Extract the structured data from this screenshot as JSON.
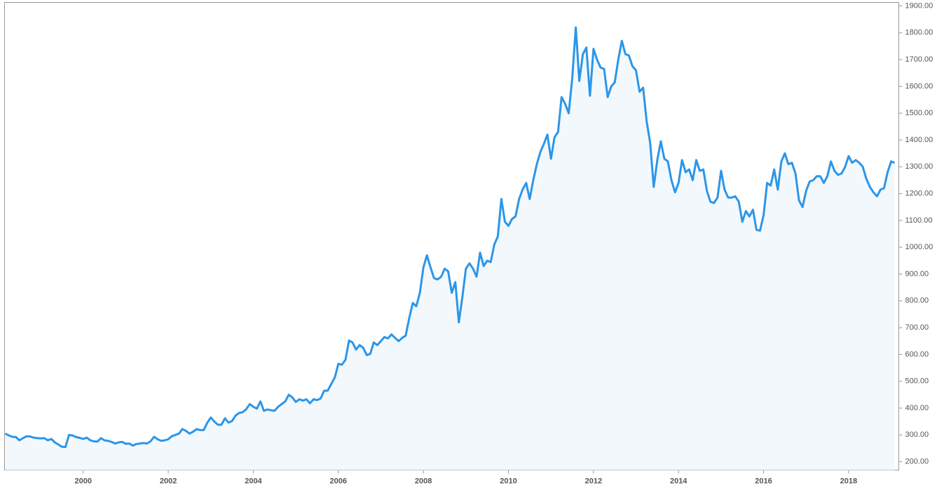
{
  "chart_data": {
    "type": "area",
    "color": "#2b96e9",
    "fill": "#f3f8fd",
    "xlim": [
      1998.15,
      2019.18
    ],
    "ylim": [
      169,
      1913
    ],
    "xticks": [
      2000,
      2002,
      2004,
      2006,
      2008,
      2010,
      2012,
      2014,
      2016,
      2018
    ],
    "yticks": [
      {
        "value": 200,
        "label": "200.00"
      },
      {
        "value": 300,
        "label": "300.00"
      },
      {
        "value": 400,
        "label": "400.00"
      },
      {
        "value": 500,
        "label": "500.00"
      },
      {
        "value": 600,
        "label": "600.00"
      },
      {
        "value": 700,
        "label": "700.00"
      },
      {
        "value": 800,
        "label": "800.00"
      },
      {
        "value": 900,
        "label": "900.00"
      },
      {
        "value": 1000,
        "label": "1000.00"
      },
      {
        "value": 1100,
        "label": "1100.00"
      },
      {
        "value": 1200,
        "label": "1200.00"
      },
      {
        "value": 1300,
        "label": "1300.00"
      },
      {
        "value": 1400,
        "label": "1400.00"
      },
      {
        "value": 1500,
        "label": "1500.00"
      },
      {
        "value": 1600,
        "label": "1600.00"
      },
      {
        "value": 1700,
        "label": "1700.00"
      },
      {
        "value": 1800,
        "label": "1800.00"
      },
      {
        "value": 1900,
        "label": "1900.00"
      }
    ],
    "x": [
      1998.167,
      1998.25,
      1998.333,
      1998.417,
      1998.5,
      1998.583,
      1998.667,
      1998.75,
      1998.833,
      1998.917,
      1999.0,
      1999.083,
      1999.167,
      1999.25,
      1999.333,
      1999.417,
      1999.5,
      1999.583,
      1999.667,
      1999.75,
      1999.833,
      1999.917,
      2000.0,
      2000.083,
      2000.167,
      2000.25,
      2000.333,
      2000.417,
      2000.5,
      2000.583,
      2000.667,
      2000.75,
      2000.833,
      2000.917,
      2001.0,
      2001.083,
      2001.167,
      2001.25,
      2001.333,
      2001.417,
      2001.5,
      2001.583,
      2001.667,
      2001.75,
      2001.833,
      2001.917,
      2002.0,
      2002.083,
      2002.167,
      2002.25,
      2002.333,
      2002.417,
      2002.5,
      2002.583,
      2002.667,
      2002.75,
      2002.833,
      2002.917,
      2003.0,
      2003.083,
      2003.167,
      2003.25,
      2003.333,
      2003.417,
      2003.5,
      2003.583,
      2003.667,
      2003.75,
      2003.833,
      2003.917,
      2004.0,
      2004.083,
      2004.167,
      2004.25,
      2004.333,
      2004.417,
      2004.5,
      2004.583,
      2004.667,
      2004.75,
      2004.833,
      2004.917,
      2005.0,
      2005.083,
      2005.167,
      2005.25,
      2005.333,
      2005.417,
      2005.5,
      2005.583,
      2005.667,
      2005.75,
      2005.833,
      2005.917,
      2006.0,
      2006.083,
      2006.167,
      2006.25,
      2006.333,
      2006.417,
      2006.5,
      2006.583,
      2006.667,
      2006.75,
      2006.833,
      2006.917,
      2007.0,
      2007.083,
      2007.167,
      2007.25,
      2007.333,
      2007.417,
      2007.5,
      2007.583,
      2007.667,
      2007.75,
      2007.833,
      2007.917,
      2008.0,
      2008.083,
      2008.167,
      2008.25,
      2008.333,
      2008.417,
      2008.5,
      2008.583,
      2008.667,
      2008.75,
      2008.833,
      2008.917,
      2009.0,
      2009.083,
      2009.167,
      2009.25,
      2009.333,
      2009.417,
      2009.5,
      2009.583,
      2009.667,
      2009.75,
      2009.833,
      2009.917,
      2010.0,
      2010.083,
      2010.167,
      2010.25,
      2010.333,
      2010.417,
      2010.5,
      2010.583,
      2010.667,
      2010.75,
      2010.833,
      2010.917,
      2011.0,
      2011.083,
      2011.167,
      2011.25,
      2011.333,
      2011.417,
      2011.5,
      2011.583,
      2011.667,
      2011.75,
      2011.833,
      2011.917,
      2012.0,
      2012.083,
      2012.167,
      2012.25,
      2012.333,
      2012.417,
      2012.5,
      2012.583,
      2012.667,
      2012.75,
      2012.833,
      2012.917,
      2013.0,
      2013.083,
      2013.167,
      2013.25,
      2013.333,
      2013.417,
      2013.5,
      2013.583,
      2013.667,
      2013.75,
      2013.833,
      2013.917,
      2014.0,
      2014.083,
      2014.167,
      2014.25,
      2014.333,
      2014.417,
      2014.5,
      2014.583,
      2014.667,
      2014.75,
      2014.833,
      2014.917,
      2015.0,
      2015.083,
      2015.167,
      2015.25,
      2015.333,
      2015.417,
      2015.5,
      2015.583,
      2015.667,
      2015.75,
      2015.833,
      2015.917,
      2016.0,
      2016.083,
      2016.167,
      2016.25,
      2016.333,
      2016.417,
      2016.5,
      2016.583,
      2016.667,
      2016.75,
      2016.833,
      2016.917,
      2017.0,
      2017.083,
      2017.167,
      2017.25,
      2017.333,
      2017.417,
      2017.5,
      2017.583,
      2017.667,
      2017.75,
      2017.833,
      2017.917,
      2018.0,
      2018.083,
      2018.167,
      2018.25,
      2018.333,
      2018.417,
      2018.5,
      2018.583,
      2018.667,
      2018.75,
      2018.833,
      2018.917,
      2019.0,
      2019.083
    ],
    "values": [
      305,
      298,
      293,
      292,
      280,
      288,
      295,
      294,
      290,
      288,
      287,
      288,
      280,
      285,
      272,
      264,
      256,
      255,
      300,
      298,
      292,
      289,
      285,
      290,
      280,
      276,
      275,
      288,
      280,
      278,
      274,
      268,
      272,
      274,
      267,
      268,
      260,
      266,
      268,
      270,
      268,
      276,
      293,
      284,
      278,
      280,
      284,
      295,
      300,
      305,
      322,
      315,
      305,
      312,
      322,
      318,
      318,
      345,
      365,
      350,
      338,
      338,
      362,
      346,
      352,
      372,
      382,
      385,
      396,
      415,
      405,
      398,
      425,
      390,
      395,
      392,
      390,
      405,
      415,
      425,
      450,
      440,
      423,
      433,
      428,
      433,
      418,
      433,
      430,
      436,
      465,
      465,
      490,
      515,
      565,
      562,
      580,
      652,
      645,
      618,
      635,
      625,
      598,
      602,
      645,
      635,
      650,
      665,
      660,
      675,
      662,
      650,
      662,
      670,
      735,
      792,
      780,
      830,
      925,
      970,
      925,
      885,
      880,
      890,
      920,
      910,
      830,
      870,
      720,
      815,
      920,
      940,
      920,
      890,
      980,
      930,
      950,
      945,
      1010,
      1040,
      1180,
      1095,
      1080,
      1105,
      1115,
      1180,
      1215,
      1240,
      1180,
      1250,
      1310,
      1355,
      1385,
      1420,
      1330,
      1410,
      1430,
      1560,
      1535,
      1500,
      1630,
      1820,
      1620,
      1720,
      1745,
      1565,
      1740,
      1700,
      1670,
      1665,
      1560,
      1600,
      1615,
      1700,
      1770,
      1720,
      1715,
      1675,
      1660,
      1580,
      1595,
      1470,
      1390,
      1225,
      1325,
      1395,
      1330,
      1320,
      1250,
      1205,
      1240,
      1325,
      1280,
      1290,
      1250,
      1325,
      1285,
      1290,
      1210,
      1170,
      1165,
      1185,
      1285,
      1215,
      1185,
      1185,
      1190,
      1170,
      1095,
      1135,
      1115,
      1140,
      1065,
      1062,
      1120,
      1240,
      1230,
      1290,
      1215,
      1320,
      1350,
      1310,
      1315,
      1275,
      1175,
      1150,
      1210,
      1245,
      1250,
      1265,
      1265,
      1240,
      1265,
      1320,
      1285,
      1270,
      1275,
      1300,
      1340,
      1315,
      1325,
      1315,
      1300,
      1255,
      1225,
      1205,
      1190,
      1215,
      1220,
      1280,
      1320,
      1315
    ]
  }
}
